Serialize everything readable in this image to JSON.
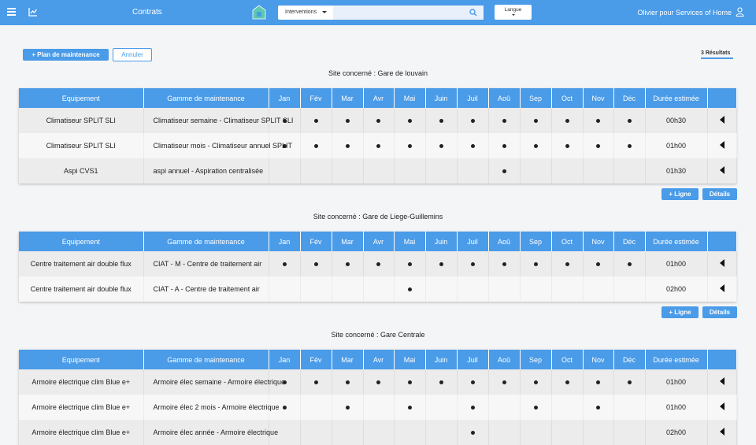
{
  "topbar": {
    "nav_link": "Contrats",
    "search_select": "Interventions",
    "search_value": "",
    "lang_label": "Langue",
    "user_label": "Olivier pour Services of Home"
  },
  "toolbar": {
    "plan_label": "+ Plan de maintenance",
    "cancel_label": "Annuler",
    "results_label": "3 Résultats"
  },
  "columns": [
    "Equipement",
    "Gamme de maintenance",
    "Jan",
    "Fév",
    "Mar",
    "Avr",
    "Mai",
    "Juin",
    "Juil",
    "Aoû",
    "Sep",
    "Oct",
    "Nov",
    "Déc",
    "Durée estimée",
    ""
  ],
  "section_buttons": {
    "add_line": "+ Ligne",
    "details": "Détails"
  },
  "sites": [
    {
      "title": "Site concerné : Gare de louvain",
      "rows": [
        {
          "equipement": "Climatiseur SPLIT SLI",
          "gamme": "Climatiseur semaine - Climatiseur SPLIT SLI",
          "months": [
            1,
            1,
            1,
            1,
            1,
            1,
            1,
            1,
            1,
            1,
            1,
            1
          ],
          "duree": "00h30"
        },
        {
          "equipement": "Climatiseur SPLIT SLI",
          "gamme": "Climatiseur mois - Climatiseur annuel SPLIT",
          "months": [
            1,
            1,
            1,
            1,
            1,
            1,
            1,
            1,
            1,
            1,
            1,
            1
          ],
          "duree": "01h00"
        },
        {
          "equipement": "Aspi CVS1",
          "gamme": "aspi annuel - Aspiration centralisée",
          "months": [
            0,
            0,
            0,
            0,
            0,
            0,
            0,
            1,
            0,
            0,
            0,
            0
          ],
          "duree": "01h30"
        }
      ]
    },
    {
      "title": "Site concerné : Gare de Liege-Guillemins",
      "rows": [
        {
          "equipement": "Centre traitement air double flux",
          "gamme": "CIAT - M - Centre de traitement air",
          "months": [
            1,
            1,
            1,
            1,
            1,
            1,
            1,
            1,
            1,
            1,
            1,
            1
          ],
          "duree": "01h00"
        },
        {
          "equipement": "Centre traitement air double flux",
          "gamme": "CIAT - A - Centre de traitement air",
          "months": [
            0,
            0,
            0,
            0,
            1,
            0,
            0,
            0,
            0,
            0,
            0,
            0
          ],
          "duree": "02h00"
        }
      ]
    },
    {
      "title": "Site concerné : Gare Centrale",
      "rows": [
        {
          "equipement": "Armoire électrique clim Blue e+",
          "gamme": "Armoire élec semaine - Armoire électrique",
          "months": [
            1,
            1,
            1,
            1,
            1,
            1,
            1,
            1,
            1,
            1,
            1,
            1
          ],
          "duree": "01h00"
        },
        {
          "equipement": "Armoire électrique clim Blue e+",
          "gamme": "Armoire élec 2 mois - Armoire électrique",
          "months": [
            1,
            0,
            1,
            0,
            1,
            0,
            1,
            0,
            1,
            0,
            1,
            0
          ],
          "duree": "01h00"
        },
        {
          "equipement": "Armoire électrique clim Blue e+",
          "gamme": "Armoire élec année - Armoire électrique",
          "months": [
            0,
            0,
            0,
            0,
            0,
            0,
            1,
            0,
            0,
            0,
            0,
            0
          ],
          "duree": "02h00"
        }
      ]
    }
  ]
}
